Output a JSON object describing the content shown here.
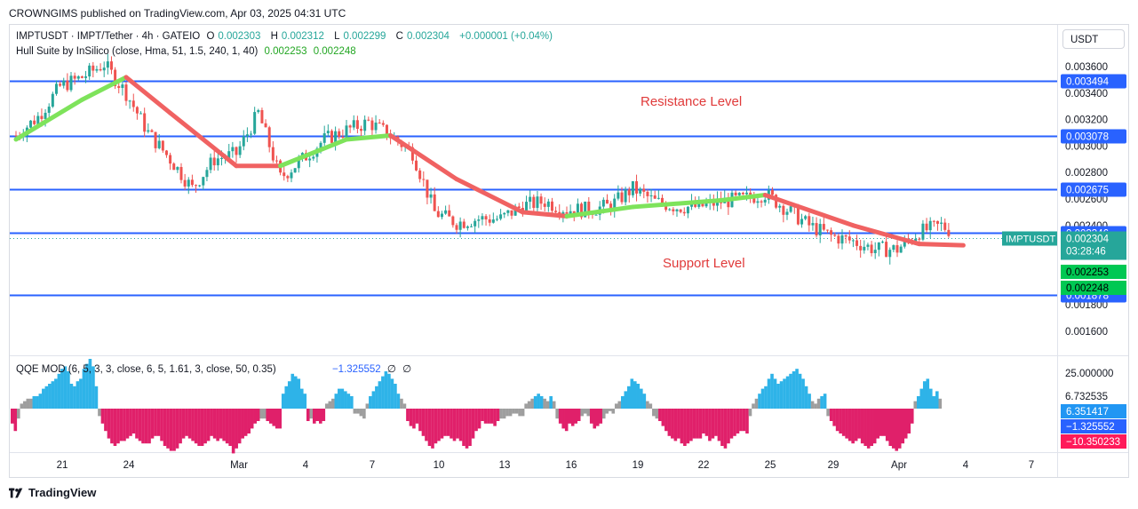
{
  "header": {
    "publisher_text": "CROWNGIMS published on TradingView.com, Apr 03, 2025 04:31 UTC"
  },
  "legend": {
    "symbol_line": "IMPTUSDT · IMPT/Tether · 4h · GATEIO",
    "ohlc": {
      "o_label": "O",
      "o": "0.002303",
      "h_label": "H",
      "h": "0.002312",
      "l_label": "L",
      "l": "0.002299",
      "c_label": "C",
      "c": "0.002304",
      "change": "+0.000001 (+0.04%)"
    },
    "hull_line": "Hull Suite by InSilico (close, Hma, 51, 1.5, 240, 1, 40)",
    "hull_v1": "0.002253",
    "hull_v2": "0.002248",
    "qqe_line": "QQE MOD (6, 5, 3, 3, close, 6, 5, 1.61, 3, close, 50, 0.35)",
    "qqe_value": "−1.325552",
    "qqe_na1": "∅",
    "qqe_na2": "∅"
  },
  "currency": "USDT",
  "annotations": {
    "resistance": "Resistance Level",
    "support": "Support Level"
  },
  "price_scale": {
    "ticks": [
      "0.003600",
      "0.003400",
      "0.003200",
      "0.003000",
      "0.002800",
      "0.002600",
      "0.002400",
      "0.001800",
      "0.001600"
    ],
    "hline_labels": [
      "0.003494",
      "0.003078",
      "0.002675",
      "0.002346",
      "0.001878"
    ],
    "symbol_tag": "IMPTUSDT",
    "last_price": "0.002304",
    "countdown": "03:28:46",
    "hull_tag1": "0.002253",
    "hull_tag2": "0.002248"
  },
  "qqe_scale": {
    "ticks": [
      "25.000000",
      "6.732535"
    ],
    "tag1": "6.351417",
    "tag2": "−1.325552",
    "tag3": "−10.350233"
  },
  "time_axis": [
    "21",
    "24",
    "Mar",
    "4",
    "7",
    "10",
    "13",
    "16",
    "19",
    "22",
    "25",
    "29",
    "Apr",
    "4",
    "7"
  ],
  "footer": {
    "brand": "TradingView"
  },
  "colors": {
    "bull": "#26a69a",
    "bear": "#ef5350",
    "hline": "#2962ff",
    "hull_up": "#7ee35b",
    "hull_down": "#f06262",
    "qqe_blue": "#2eb3e8",
    "qqe_pink": "#e0206a",
    "qqe_gray": "#9e9e9e",
    "last_tag": "#26a69a",
    "hull_tag": "#00c853",
    "qqe_tag3": "#ff1a5a"
  },
  "chart_data": {
    "type": "candlestick",
    "symbol": "IMPTUSDT",
    "timeframe": "4h",
    "ylim": [
      0.00155,
      0.00375
    ],
    "horizontal_levels": [
      0.003494,
      0.003078,
      0.002675,
      0.002346,
      0.001878
    ],
    "close_path": [
      {
        "t": "Feb 19",
        "close": 0.00308
      },
      {
        "t": "Feb 20",
        "close": 0.00322
      },
      {
        "t": "Feb 21",
        "close": 0.00345
      },
      {
        "t": "Feb 22",
        "close": 0.00352
      },
      {
        "t": "Feb 23",
        "close": 0.00362
      },
      {
        "t": "Feb 24",
        "close": 0.0034
      },
      {
        "t": "Feb 25",
        "close": 0.0031
      },
      {
        "t": "Feb 26",
        "close": 0.0029
      },
      {
        "t": "Feb 27",
        "close": 0.00268
      },
      {
        "t": "Feb 28",
        "close": 0.0029
      },
      {
        "t": "Mar 1",
        "close": 0.00294
      },
      {
        "t": "Mar 2",
        "close": 0.00325
      },
      {
        "t": "Mar 3",
        "close": 0.00276
      },
      {
        "t": "Mar 4",
        "close": 0.0029
      },
      {
        "t": "Mar 5",
        "close": 0.00305
      },
      {
        "t": "Mar 6",
        "close": 0.00312
      },
      {
        "t": "Mar 7",
        "close": 0.00318
      },
      {
        "t": "Mar 8",
        "close": 0.00308
      },
      {
        "t": "Mar 9",
        "close": 0.00295
      },
      {
        "t": "Mar 10",
        "close": 0.0025
      },
      {
        "t": "Mar 11",
        "close": 0.00242
      },
      {
        "t": "Mar 12",
        "close": 0.00245
      },
      {
        "t": "Mar 13",
        "close": 0.00245
      },
      {
        "t": "Mar 14",
        "close": 0.00255
      },
      {
        "t": "Mar 15",
        "close": 0.00258
      },
      {
        "t": "Mar 16",
        "close": 0.00252
      },
      {
        "t": "Mar 17",
        "close": 0.00252
      },
      {
        "t": "Mar 18",
        "close": 0.00255
      },
      {
        "t": "Mar 19",
        "close": 0.00268
      },
      {
        "t": "Mar 20",
        "close": 0.00258
      },
      {
        "t": "Mar 21",
        "close": 0.00254
      },
      {
        "t": "Mar 22",
        "close": 0.00254
      },
      {
        "t": "Mar 23",
        "close": 0.00258
      },
      {
        "t": "Mar 24",
        "close": 0.0026
      },
      {
        "t": "Mar 25",
        "close": 0.00264
      },
      {
        "t": "Mar 26",
        "close": 0.00252
      },
      {
        "t": "Mar 27",
        "close": 0.0024
      },
      {
        "t": "Mar 28",
        "close": 0.00232
      },
      {
        "t": "Mar 29",
        "close": 0.00228
      },
      {
        "t": "Mar 30",
        "close": 0.00222
      },
      {
        "t": "Mar 31",
        "close": 0.00222
      },
      {
        "t": "Apr 1",
        "close": 0.00235
      },
      {
        "t": "Apr 2",
        "close": 0.0024
      },
      {
        "t": "Apr 3",
        "close": 0.002304
      }
    ],
    "hull_suite": [
      {
        "t": "Feb 19",
        "value": 0.00305,
        "trend": "up"
      },
      {
        "t": "Feb 22",
        "value": 0.00335,
        "trend": "up"
      },
      {
        "t": "Feb 24",
        "value": 0.00352,
        "trend": "down"
      },
      {
        "t": "Feb 26",
        "value": 0.00325,
        "trend": "down"
      },
      {
        "t": "Mar 1",
        "value": 0.00285,
        "trend": "down"
      },
      {
        "t": "Mar 3",
        "value": 0.00285,
        "trend": "up"
      },
      {
        "t": "Mar 6",
        "value": 0.00305,
        "trend": "up"
      },
      {
        "t": "Mar 8",
        "value": 0.00308,
        "trend": "down"
      },
      {
        "t": "Mar 11",
        "value": 0.00275,
        "trend": "down"
      },
      {
        "t": "Mar 14",
        "value": 0.0025,
        "trend": "down"
      },
      {
        "t": "Mar 16",
        "value": 0.00247,
        "trend": "up"
      },
      {
        "t": "Mar 19",
        "value": 0.00254,
        "trend": "up"
      },
      {
        "t": "Mar 23",
        "value": 0.00259,
        "trend": "up"
      },
      {
        "t": "Mar 25",
        "value": 0.00263,
        "trend": "down"
      },
      {
        "t": "Mar 29",
        "value": 0.0024,
        "trend": "down"
      },
      {
        "t": "Apr 1",
        "value": 0.00226,
        "trend": "down"
      },
      {
        "t": "Apr 3",
        "value": 0.00225,
        "trend": "up"
      }
    ],
    "qqe_mod": {
      "ylim": [
        -14,
        28
      ],
      "last_value": -1.325552,
      "histogram": [
        -6,
        -9,
        -4,
        2,
        3,
        4,
        4,
        5,
        5,
        6,
        8,
        9,
        10,
        11,
        12,
        14,
        16,
        17,
        15,
        10,
        9,
        11,
        12,
        16,
        18,
        20,
        17,
        9,
        -3,
        -6,
        -9,
        -12,
        -14,
        -15,
        -14,
        -13,
        -13,
        -12,
        -11,
        -10,
        -12,
        -13,
        -14,
        -14,
        -14,
        -12,
        -11,
        -11,
        -13,
        -15,
        -16,
        -17,
        -17,
        -16,
        -14,
        -12,
        -11,
        -12,
        -13,
        -14,
        -15,
        -15,
        -14,
        -13,
        -11,
        -12,
        -13,
        -12,
        -13,
        -14,
        -15,
        -18,
        -16,
        -14,
        -12,
        -11,
        -10,
        -8,
        -6,
        -5,
        -4,
        -4,
        -5,
        -6,
        -7,
        -8,
        -8,
        6,
        9,
        11,
        14,
        13,
        12,
        8,
        6,
        -5,
        -4,
        -6,
        -5,
        -6,
        -5,
        2,
        3,
        4,
        6,
        8,
        8,
        7,
        6,
        5,
        -2,
        -2,
        -3,
        -4,
        2,
        5,
        7,
        9,
        11,
        13,
        15,
        14,
        12,
        10,
        6,
        4,
        2,
        -5,
        -7,
        -8,
        -6,
        -9,
        -11,
        -13,
        -15,
        -16,
        -14,
        -13,
        -12,
        -11,
        -11,
        -12,
        -13,
        -12,
        -13,
        -15,
        -16,
        -15,
        -12,
        -9,
        -8,
        -5,
        -6,
        -6,
        -6,
        -7,
        -5,
        -4,
        -4,
        -3,
        -3,
        -2,
        -2,
        -3,
        -3,
        2,
        3,
        4,
        5,
        6,
        5,
        4,
        3,
        5,
        3,
        -4,
        -6,
        -8,
        -9,
        -6,
        -7,
        -6,
        -5,
        -3,
        -2,
        -3,
        -6,
        -8,
        -7,
        -6,
        -4,
        -2,
        -1,
        -2,
        2,
        3,
        5,
        7,
        9,
        12,
        11,
        10,
        8,
        6,
        3,
        2,
        -3,
        -4,
        -5,
        -7,
        -9,
        -11,
        -12,
        -13,
        -12,
        -14,
        -15,
        -14,
        -13,
        -12,
        -12,
        -12,
        -10,
        -11,
        -13,
        -12,
        -11,
        -13,
        -15,
        -16,
        -14,
        -12,
        -11,
        -10,
        -9,
        -9,
        -10,
        -3,
        2,
        4,
        6,
        8,
        9,
        12,
        14,
        12,
        10,
        11,
        12,
        13,
        14,
        15,
        16,
        14,
        12,
        9,
        6,
        3,
        2,
        4,
        5,
        6,
        -3,
        -5,
        -7,
        -9,
        -10,
        -11,
        -12,
        -13,
        -14,
        -13,
        -12,
        -14,
        -15,
        -16,
        -15,
        -14,
        -12,
        -11,
        -11,
        -13,
        -15,
        -16,
        -17,
        -16,
        -14,
        -12,
        -10,
        -6,
        3,
        5,
        8,
        11,
        12,
        8,
        5,
        7,
        4
      ]
    }
  }
}
